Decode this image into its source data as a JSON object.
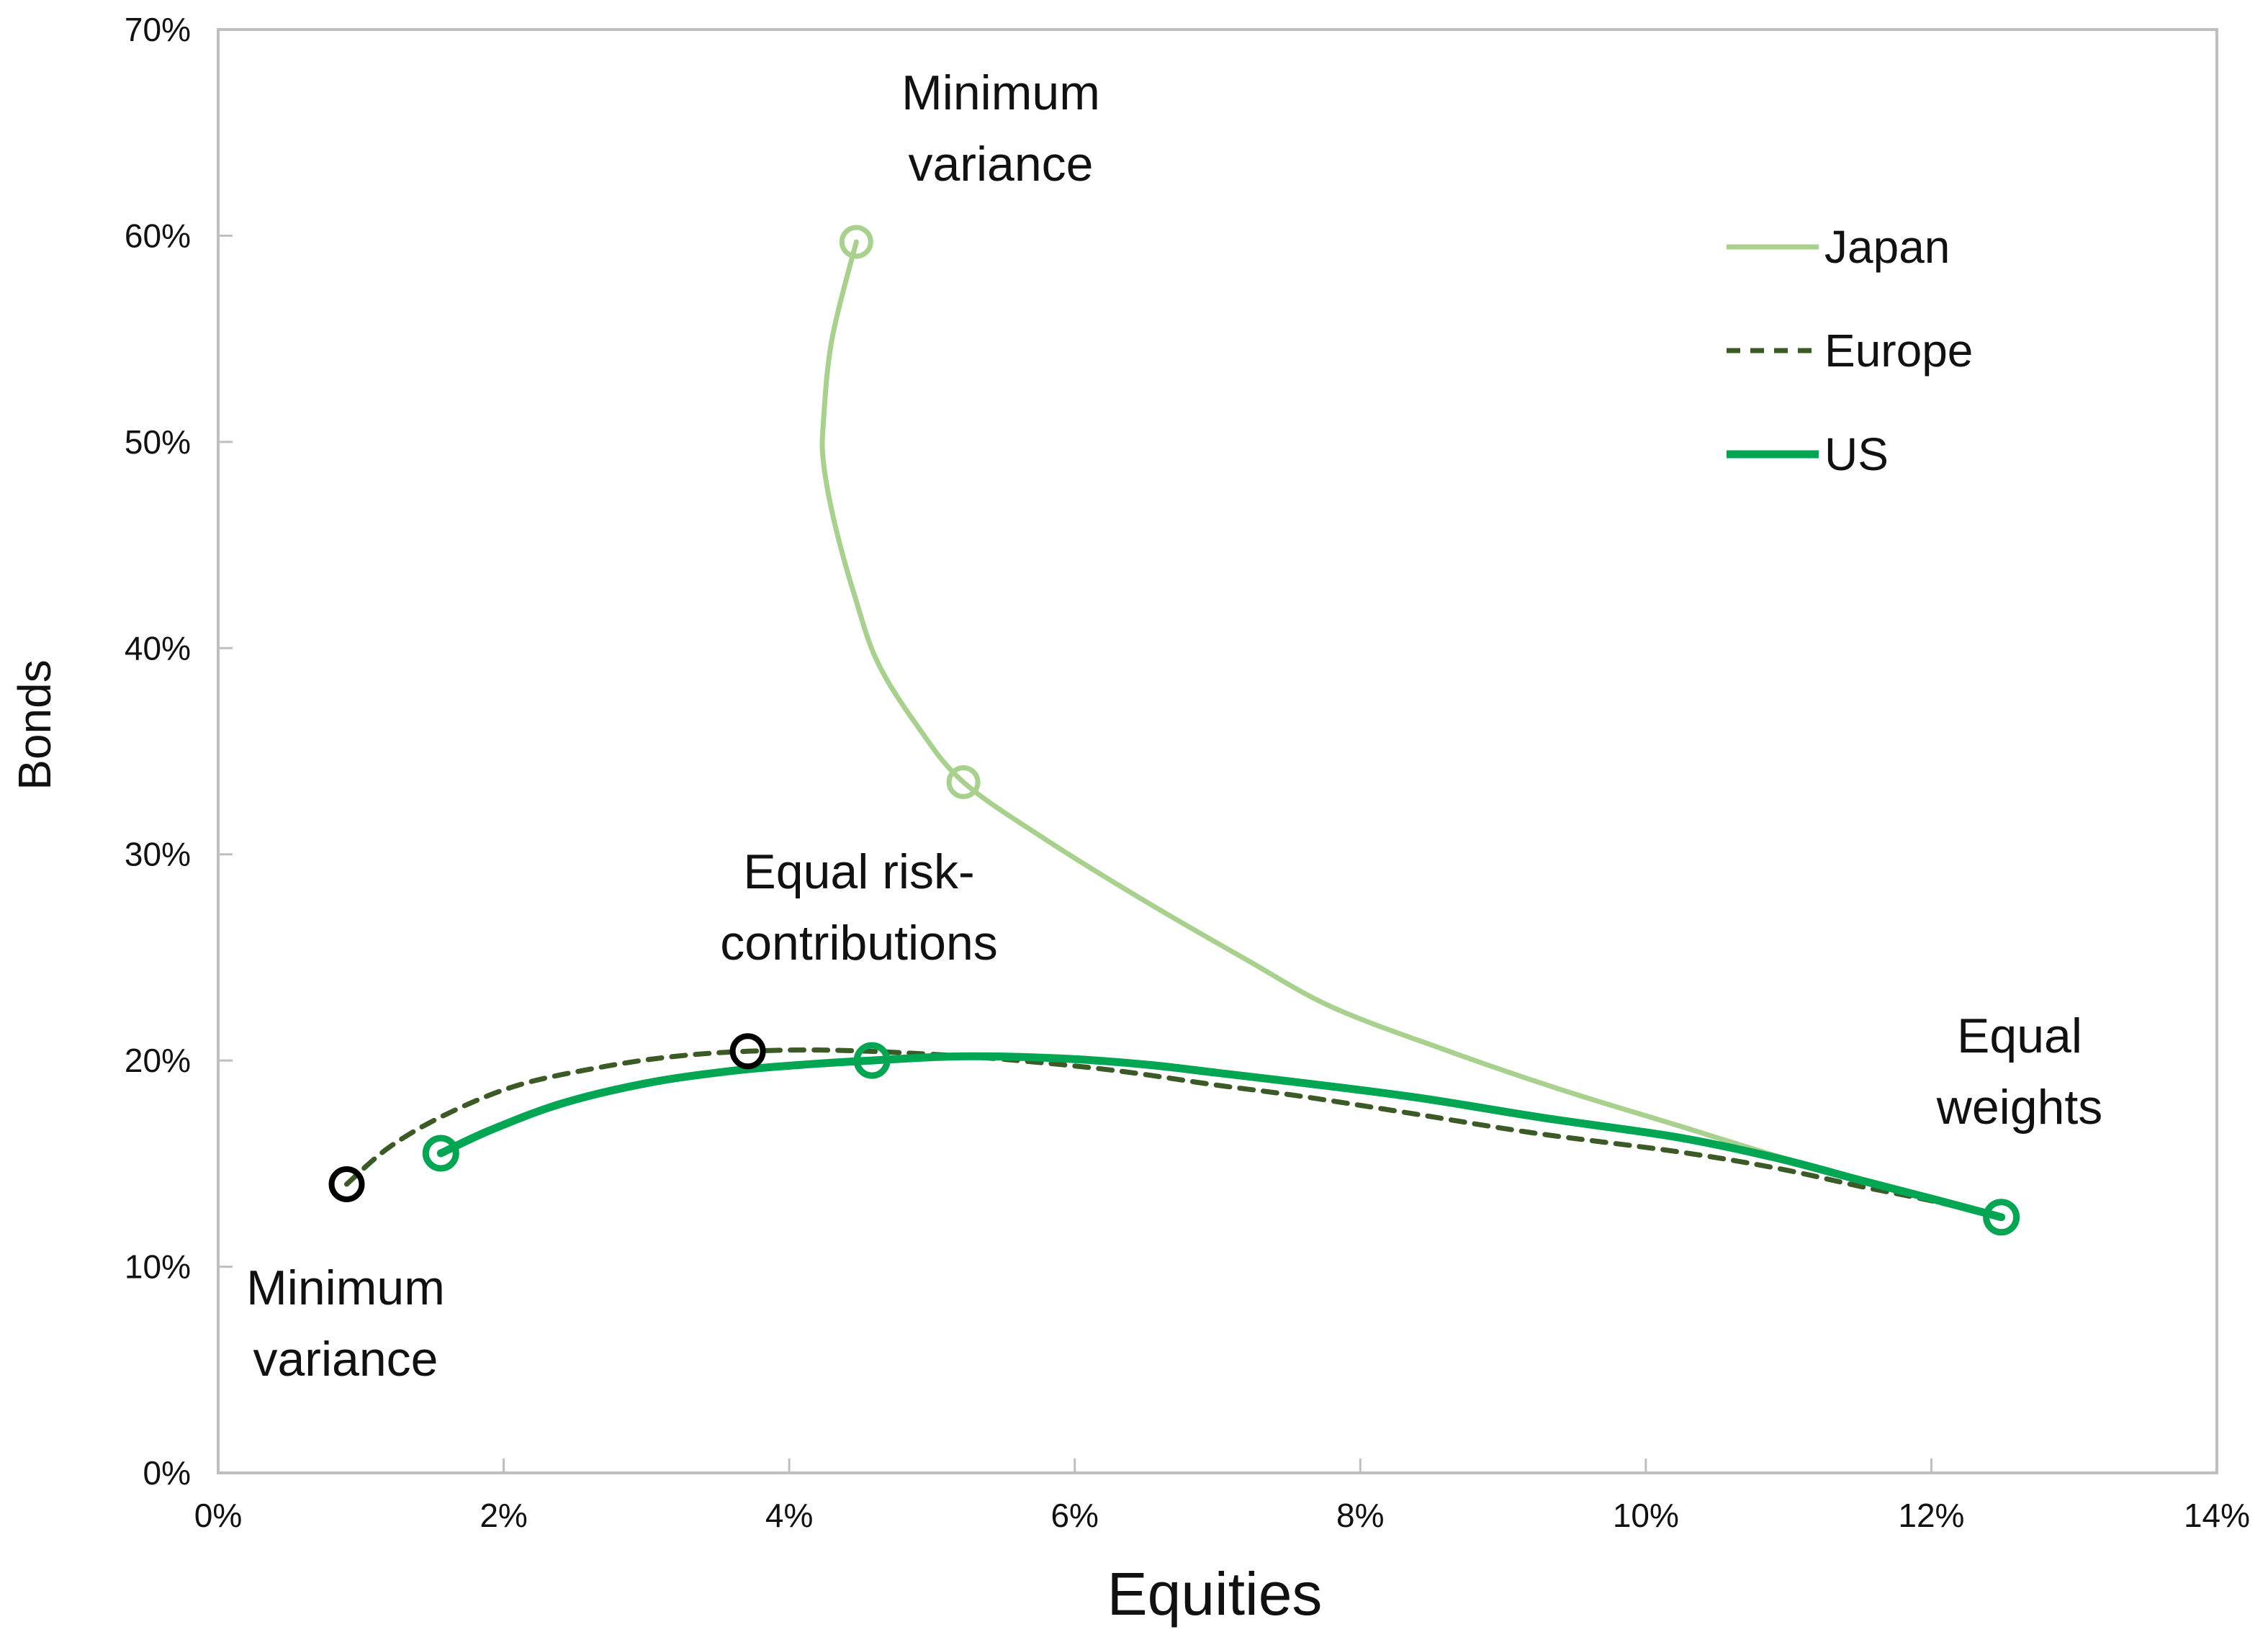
{
  "chart_data": {
    "type": "line",
    "title": "",
    "xlabel": "Equities",
    "ylabel": "Bonds",
    "xlim": [
      0,
      14
    ],
    "ylim": [
      0,
      70
    ],
    "grid": false,
    "legend_position": "inside-top-right",
    "x_tick_values": [
      0,
      2,
      4,
      6,
      8,
      10,
      12,
      14
    ],
    "x_tick_labels": [
      "0%",
      "2%",
      "4%",
      "6%",
      "8%",
      "10%",
      "12%",
      "14%"
    ],
    "y_tick_values": [
      0,
      10,
      20,
      30,
      40,
      50,
      60,
      70
    ],
    "y_tick_labels": [
      "0%",
      "10%",
      "20%",
      "30%",
      "40%",
      "50%",
      "60%",
      "70%"
    ],
    "axis_color": "#BFBFBF",
    "tick_label_color": "#111111",
    "series": [
      {
        "name": "Japan",
        "color": "#A9D18E",
        "width": 7,
        "dash": null,
        "points": [
          [
            4.47,
            59.7
          ],
          [
            4.3,
            55.0
          ],
          [
            4.24,
            51.0
          ],
          [
            4.24,
            49.0
          ],
          [
            4.32,
            46.0
          ],
          [
            4.46,
            42.5
          ],
          [
            4.62,
            39.3
          ],
          [
            4.9,
            36.2
          ],
          [
            5.22,
            33.5
          ],
          [
            5.8,
            30.7
          ],
          [
            6.5,
            27.7
          ],
          [
            7.2,
            24.9
          ],
          [
            7.8,
            22.6
          ],
          [
            8.6,
            20.5
          ],
          [
            9.4,
            18.6
          ],
          [
            10.2,
            16.9
          ],
          [
            11.0,
            15.2
          ],
          [
            11.7,
            13.9
          ],
          [
            12.1,
            13.1
          ],
          [
            12.49,
            12.4
          ]
        ]
      },
      {
        "name": "Europe",
        "color": "#3C5A25",
        "width": 7,
        "dash": "19 14",
        "points": [
          [
            0.9,
            14.0
          ],
          [
            1.2,
            15.8
          ],
          [
            1.6,
            17.4
          ],
          [
            2.1,
            18.8
          ],
          [
            2.7,
            19.7
          ],
          [
            3.2,
            20.2
          ],
          [
            3.71,
            20.45
          ],
          [
            4.3,
            20.5
          ],
          [
            5.0,
            20.3
          ],
          [
            5.6,
            20.0
          ],
          [
            6.3,
            19.5
          ],
          [
            7.0,
            18.8
          ],
          [
            7.55,
            18.3
          ],
          [
            8.3,
            17.5
          ],
          [
            9.2,
            16.5
          ],
          [
            10.2,
            15.6
          ],
          [
            10.9,
            14.8
          ],
          [
            11.5,
            13.9
          ],
          [
            12.0,
            13.2
          ],
          [
            12.49,
            12.4
          ]
        ]
      },
      {
        "name": "US",
        "color": "#00A651",
        "width": 11,
        "dash": null,
        "points": [
          [
            1.56,
            15.5
          ],
          [
            1.9,
            16.6
          ],
          [
            2.4,
            17.9
          ],
          [
            3.0,
            18.9
          ],
          [
            3.6,
            19.5
          ],
          [
            4.1,
            19.8
          ],
          [
            4.58,
            20.0
          ],
          [
            5.2,
            20.2
          ],
          [
            5.9,
            20.1
          ],
          [
            6.5,
            19.8
          ],
          [
            7.0,
            19.4
          ],
          [
            7.55,
            18.95
          ],
          [
            8.4,
            18.2
          ],
          [
            9.3,
            17.2
          ],
          [
            10.2,
            16.3
          ],
          [
            10.9,
            15.3
          ],
          [
            11.5,
            14.2
          ],
          [
            12.0,
            13.3
          ],
          [
            12.49,
            12.4
          ]
        ]
      }
    ],
    "markers": [
      {
        "x": 4.47,
        "y": 59.7,
        "color": "#A9D18E",
        "r": 20,
        "sw": 7,
        "name": "japan-minimum-variance"
      },
      {
        "x": 5.22,
        "y": 33.5,
        "color": "#A9D18E",
        "r": 20,
        "sw": 7,
        "name": "japan-equal-risk-contributions"
      },
      {
        "x": 0.9,
        "y": 14.0,
        "color": "#000000",
        "r": 21,
        "sw": 8,
        "name": "europe-minimum-variance"
      },
      {
        "x": 3.71,
        "y": 20.45,
        "color": "#000000",
        "r": 21,
        "sw": 8,
        "name": "europe-equal-risk-contributions"
      },
      {
        "x": 1.56,
        "y": 15.5,
        "color": "#00A651",
        "r": 21,
        "sw": 9,
        "name": "us-minimum-variance"
      },
      {
        "x": 4.58,
        "y": 20.0,
        "color": "#00A651",
        "r": 21,
        "sw": 9,
        "name": "us-equal-risk-contributions"
      },
      {
        "x": 12.49,
        "y": 12.4,
        "color": "#00A651",
        "r": 21,
        "sw": 9,
        "name": "equal-weights-shared"
      }
    ]
  },
  "legend": {
    "items": [
      {
        "label": "Japan",
        "color": "#A9D18E",
        "width": 7,
        "dash": null
      },
      {
        "label": "Europe",
        "color": "#3C5A25",
        "width": 7,
        "dash": "19 14"
      },
      {
        "label": "US",
        "color": "#00A651",
        "width": 11,
        "dash": null
      }
    ]
  },
  "axis_titles": {
    "x": "Equities",
    "y": "Bonds"
  },
  "annotations": {
    "min_var_top": {
      "line1": "Minimum",
      "line2": "variance"
    },
    "erc": {
      "line1": "Equal risk-",
      "line2": "contributions"
    },
    "equal_weights": {
      "line1": "Equal",
      "line2": "weights"
    },
    "min_var_bottom": {
      "line1": "Minimum",
      "line2": "variance"
    }
  },
  "colors": {
    "japan": "#A9D18E",
    "europe": "#3C5A25",
    "us": "#00A651",
    "axis": "#BFBFBF",
    "text": "#111111"
  }
}
